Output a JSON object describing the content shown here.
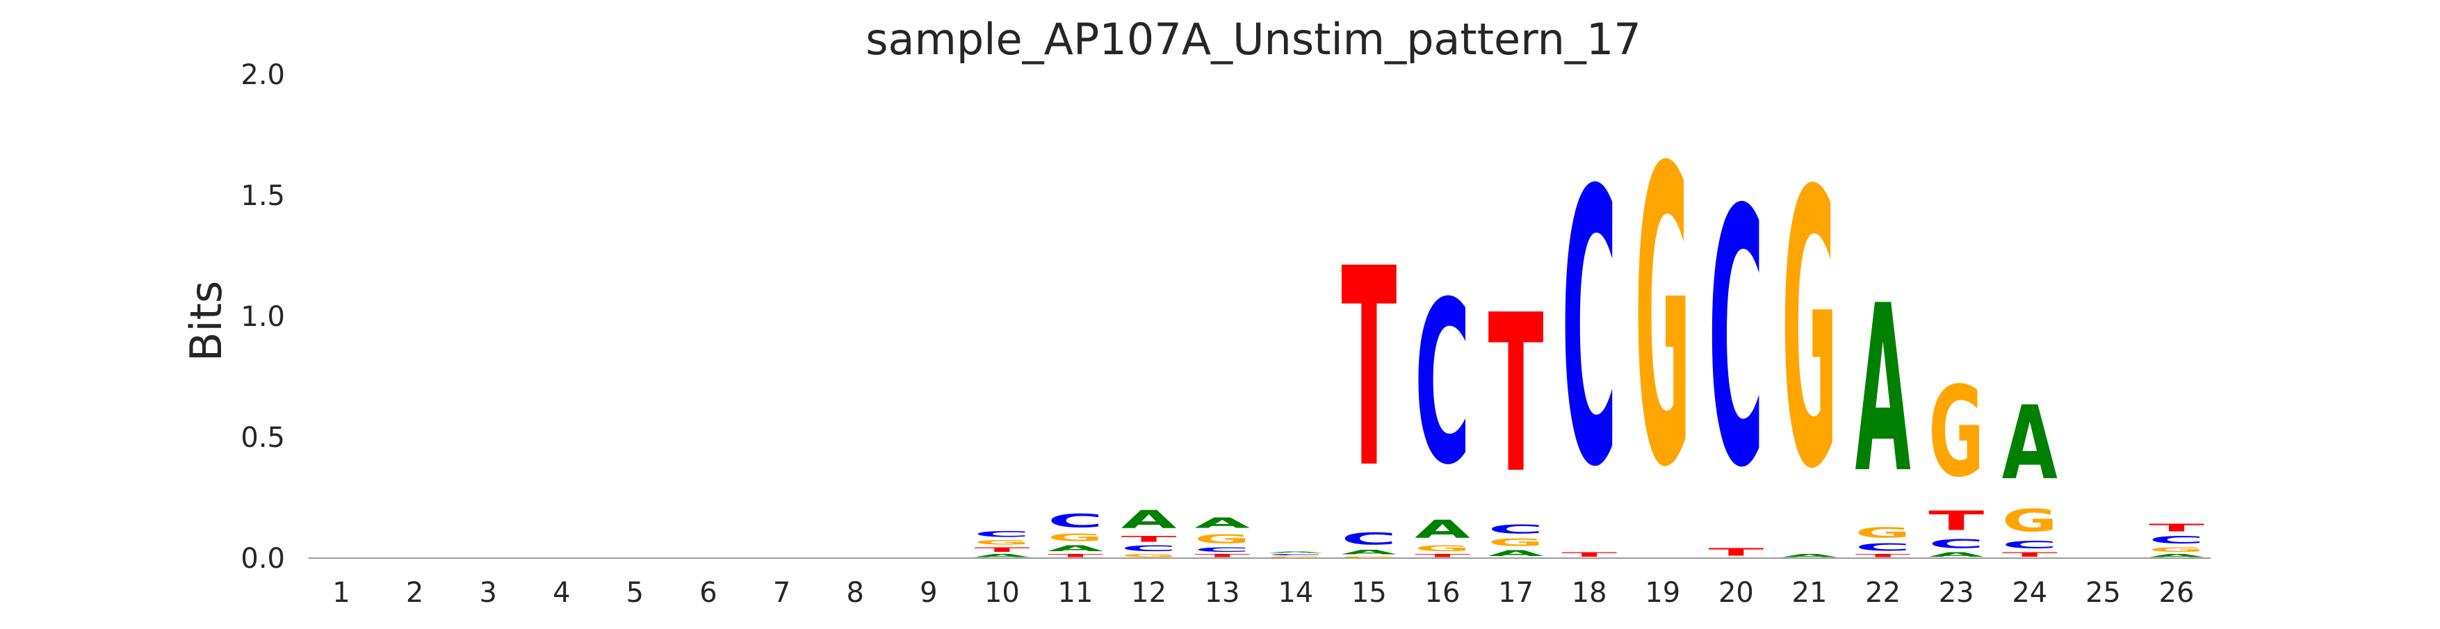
{
  "chart_data": {
    "type": "sequence_logo",
    "title": "sample_AP107A_Unstim_pattern_17",
    "ylabel": "Bits",
    "xlabel": "",
    "ylim": [
      0,
      2.0
    ],
    "yticks": [
      "0.0",
      "0.5",
      "1.0",
      "1.5",
      "2.0"
    ],
    "categories": [
      "1",
      "2",
      "3",
      "4",
      "5",
      "6",
      "7",
      "8",
      "9",
      "10",
      "11",
      "12",
      "13",
      "14",
      "15",
      "16",
      "17",
      "18",
      "19",
      "20",
      "21",
      "22",
      "23",
      "24",
      "25",
      "26"
    ],
    "colors": {
      "A": "#008000",
      "C": "#0000ff",
      "G": "#ffa500",
      "T": "#ff0000"
    },
    "positions": [
      {
        "pos": "1",
        "letters": []
      },
      {
        "pos": "2",
        "letters": []
      },
      {
        "pos": "3",
        "letters": []
      },
      {
        "pos": "4",
        "letters": []
      },
      {
        "pos": "5",
        "letters": []
      },
      {
        "pos": "6",
        "letters": []
      },
      {
        "pos": "7",
        "letters": []
      },
      {
        "pos": "8",
        "letters": []
      },
      {
        "pos": "9",
        "letters": []
      },
      {
        "pos": "10",
        "letters": [
          {
            "base": "A",
            "height": 0.02
          },
          {
            "base": "T",
            "height": 0.03
          },
          {
            "base": "G",
            "height": 0.03
          },
          {
            "base": "C",
            "height": 0.04
          }
        ]
      },
      {
        "pos": "11",
        "letters": [
          {
            "base": "T",
            "height": 0.02
          },
          {
            "base": "A",
            "height": 0.04
          },
          {
            "base": "G",
            "height": 0.05
          },
          {
            "base": "C",
            "height": 0.09
          }
        ]
      },
      {
        "pos": "12",
        "letters": [
          {
            "base": "G",
            "height": 0.02
          },
          {
            "base": "C",
            "height": 0.04
          },
          {
            "base": "T",
            "height": 0.04
          },
          {
            "base": "A",
            "height": 0.12
          }
        ]
      },
      {
        "pos": "13",
        "letters": [
          {
            "base": "T",
            "height": 0.02
          },
          {
            "base": "C",
            "height": 0.03
          },
          {
            "base": "G",
            "height": 0.06
          },
          {
            "base": "A",
            "height": 0.07
          }
        ]
      },
      {
        "pos": "14",
        "letters": [
          {
            "base": "G",
            "height": 0.01
          },
          {
            "base": "C",
            "height": 0.01
          },
          {
            "base": "A",
            "height": 0.01
          }
        ]
      },
      {
        "pos": "15",
        "letters": [
          {
            "base": "G",
            "height": 0.01
          },
          {
            "base": "A",
            "height": 0.03
          },
          {
            "base": "C",
            "height": 0.08
          },
          {
            "base": "T",
            "height": 1.32
          }
        ]
      },
      {
        "pos": "16",
        "letters": [
          {
            "base": "T",
            "height": 0.02
          },
          {
            "base": "G",
            "height": 0.04
          },
          {
            "base": "A",
            "height": 0.12
          },
          {
            "base": "C",
            "height": 1.08
          }
        ]
      },
      {
        "pos": "17",
        "letters": [
          {
            "base": "A",
            "height": 0.04
          },
          {
            "base": "G",
            "height": 0.05
          },
          {
            "base": "C",
            "height": 0.06
          },
          {
            "base": "T",
            "height": 1.05
          }
        ]
      },
      {
        "pos": "18",
        "letters": [
          {
            "base": "T",
            "height": 0.03
          },
          {
            "base": "C",
            "height": 1.82
          }
        ]
      },
      {
        "pos": "19",
        "letters": [
          {
            "base": "G",
            "height": 1.97
          }
        ]
      },
      {
        "pos": "20",
        "letters": [
          {
            "base": "T",
            "height": 0.05
          },
          {
            "base": "C",
            "height": 1.7
          }
        ]
      },
      {
        "pos": "21",
        "letters": [
          {
            "base": "A",
            "height": 0.02
          },
          {
            "base": "G",
            "height": 1.83
          }
        ]
      },
      {
        "pos": "22",
        "letters": [
          {
            "base": "T",
            "height": 0.02
          },
          {
            "base": "C",
            "height": 0.05
          },
          {
            "base": "G",
            "height": 0.07
          },
          {
            "base": "A",
            "height": 1.11
          }
        ]
      },
      {
        "pos": "23",
        "letters": [
          {
            "base": "A",
            "height": 0.03
          },
          {
            "base": "C",
            "height": 0.06
          },
          {
            "base": "T",
            "height": 0.13
          },
          {
            "base": "G",
            "height": 0.6
          }
        ]
      },
      {
        "pos": "24",
        "letters": [
          {
            "base": "T",
            "height": 0.03
          },
          {
            "base": "C",
            "height": 0.05
          },
          {
            "base": "G",
            "height": 0.15
          },
          {
            "base": "A",
            "height": 0.49
          }
        ]
      },
      {
        "pos": "25",
        "letters": []
      },
      {
        "pos": "26",
        "letters": [
          {
            "base": "A",
            "height": 0.02
          },
          {
            "base": "G",
            "height": 0.03
          },
          {
            "base": "C",
            "height": 0.05
          },
          {
            "base": "T",
            "height": 0.05
          }
        ]
      }
    ],
    "grid": false,
    "legend": "none"
  }
}
